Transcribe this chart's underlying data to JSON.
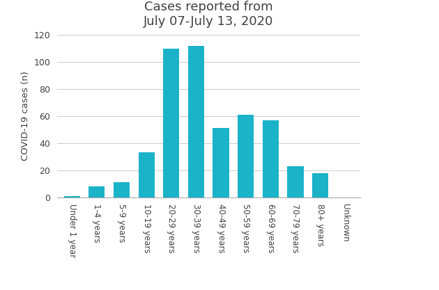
{
  "categories": [
    "Under 1 year",
    "1-4 years",
    "5-9 years",
    "10-19 years",
    "20-29 years",
    "30-39 years",
    "40-49 years",
    "50-59 years",
    "60-69 years",
    "70-79 years",
    "80+ years",
    "Unknown"
  ],
  "values": [
    1,
    8,
    11,
    33,
    110,
    112,
    51,
    61,
    57,
    23,
    18,
    0
  ],
  "bar_color": "#1ab3c8",
  "title": "Cases reported from\nJuly 07-July 13, 2020",
  "ylabel": "COVID-19 cases (n)",
  "ylim": [
    0,
    120
  ],
  "yticks": [
    0,
    20,
    40,
    60,
    80,
    100,
    120
  ],
  "title_fontsize": 13,
  "label_fontsize": 9.5,
  "tick_fontsize": 9,
  "xtick_fontsize": 8.5,
  "background_color": "#ffffff",
  "grid_color": "#cccccc",
  "title_color": "#404040",
  "axis_color": "#aaaaaa",
  "text_color": "#404040"
}
